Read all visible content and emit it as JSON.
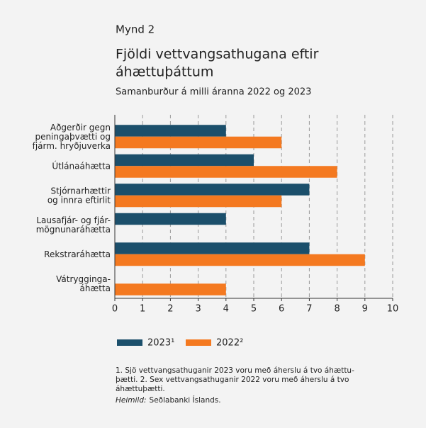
{
  "chart_data": {
    "type": "hbar",
    "figure_label": "Mynd 2",
    "title": [
      "Fjöldi vettvangsathugana eftir",
      "áhættuþáttum"
    ],
    "subtitle": "Samanburður á milli áranna 2022 og 2023",
    "categories": [
      "Aðgerðir gegn\npeningaþvætti og\nfjárm. hryðjuverka",
      "Útlánaáhætta",
      "Stjórnarhættir\nog innra eftirlit",
      "Lausafjár- og fjár-\nmögnunaráhætta",
      "Rekstraráhætta",
      "Vátrygginga-\náhætta"
    ],
    "series": [
      {
        "name": "2023¹",
        "color": "#1b4f6b",
        "values": [
          4,
          5,
          7,
          4,
          7,
          0
        ]
      },
      {
        "name": "2022²",
        "color": "#f47920",
        "values": [
          6,
          8,
          6,
          0,
          9,
          4
        ]
      }
    ],
    "xlim": [
      0,
      10
    ],
    "xticks": [
      0,
      1,
      2,
      3,
      4,
      5,
      6,
      7,
      8,
      9,
      10
    ],
    "grid": true,
    "notes": [
      "1. Sjö vettvangsathuganir 2023 voru með áherslu á tvo áhættu-",
      "þætti. 2. Sex vettvangsathuganir 2022 voru með áherslu á tvo",
      "áhættuþætti."
    ],
    "source": {
      "label": "Heimild:",
      "text": "Seðlabanki Íslands."
    }
  }
}
